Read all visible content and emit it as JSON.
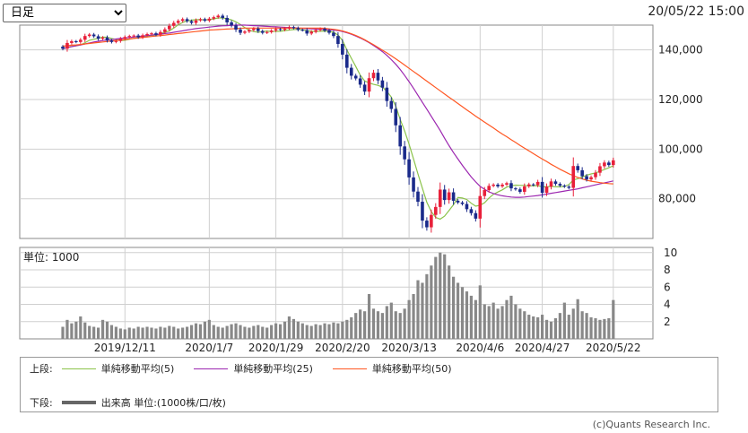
{
  "header": {
    "period_options": [
      "日足"
    ],
    "period_selected": "日足",
    "datetime": "20/05/22 15:00"
  },
  "chart_data": {
    "type": "candlestick",
    "price_axis": {
      "ticks": [
        80000,
        100000,
        120000,
        140000
      ],
      "tick_labels": [
        "80,000",
        "100,000",
        "120,000",
        "140,000"
      ],
      "range": [
        64000,
        150000
      ]
    },
    "volume_axis": {
      "label": "単位: 1000",
      "ticks": [
        2,
        4,
        6,
        8,
        10
      ],
      "tick_labels": [
        "2",
        "4",
        "6",
        "8",
        "10"
      ],
      "range": [
        0,
        10.6
      ]
    },
    "x_axis": {
      "date_labels": [
        "2019/12/11",
        "2020/1/7",
        "2020/1/29",
        "2020/2/20",
        "2020/3/13",
        "2020/4/6",
        "2020/4/27",
        "2020/5/22"
      ],
      "label_index": [
        14,
        33,
        48,
        63,
        78,
        94,
        108,
        124
      ]
    },
    "grid": true,
    "close": [
      140500,
      142800,
      143500,
      143200,
      144100,
      145600,
      146200,
      145500,
      144500,
      145000,
      143800,
      143200,
      143600,
      144500,
      145200,
      145600,
      145800,
      145100,
      145900,
      146400,
      146700,
      146100,
      147200,
      148300,
      149700,
      150900,
      151700,
      152400,
      151600,
      150900,
      151900,
      152400,
      151800,
      152600,
      153200,
      153800,
      152900,
      151100,
      149900,
      148200,
      146900,
      147400,
      148000,
      148600,
      147600,
      146900,
      147200,
      147800,
      148400,
      148100,
      148600,
      149200,
      148800,
      148100,
      147900,
      146600,
      147300,
      148000,
      148500,
      147800,
      146900,
      145600,
      142400,
      138100,
      132800,
      129600,
      128500,
      126000,
      123200,
      128600,
      130800,
      127700,
      124800,
      119400,
      116200,
      109600,
      101100,
      95900,
      88600,
      82900,
      78800,
      71200,
      68500,
      73500,
      76700,
      83700,
      79500,
      82600,
      79200,
      78500,
      77900,
      75800,
      74200,
      72000,
      81100,
      83500,
      85200,
      85700,
      85000,
      85700,
      86300,
      84200,
      83800,
      82800,
      85000,
      85800,
      85500,
      86800,
      82400,
      84900,
      87000,
      86000,
      85300,
      84900,
      84400,
      93200,
      91500,
      89100,
      87800,
      88700,
      90500,
      93100,
      94600,
      93600,
      95500
    ],
    "series": [
      {
        "name": "単純移動平均(5)",
        "color": "#8bc34a",
        "values": [
          140500,
          140950,
          141400,
          141600,
          142000,
          142900,
          143900,
          144300,
          144700,
          145200,
          145100,
          144600,
          144200,
          143800,
          143900,
          144300,
          144700,
          144900,
          145300,
          145600,
          145800,
          146000,
          146500,
          147100,
          147700,
          148800,
          150100,
          151100,
          151700,
          152000,
          152200,
          152200,
          152100,
          152200,
          152500,
          152900,
          152900,
          152600,
          152100,
          151300,
          150300,
          149000,
          147900,
          147400,
          147100,
          147400,
          147600,
          147400,
          147400,
          147500,
          147800,
          148000,
          148200,
          148300,
          148100,
          147800,
          147500,
          147400,
          147500,
          147600,
          147500,
          147100,
          146000,
          143800,
          140000,
          136600,
          133300,
          129800,
          127500,
          126700,
          126100,
          125700,
          125000,
          123300,
          121000,
          117300,
          112000,
          107300,
          102000,
          96000,
          90000,
          84300,
          78600,
          74800,
          72500,
          71800,
          73000,
          75300,
          77600,
          80500,
          80300,
          79700,
          78200,
          77000,
          77400,
          78400,
          80300,
          81800,
          82700,
          83600,
          84700,
          85200,
          85500,
          85400,
          85400,
          85200,
          85200,
          85300,
          84800,
          84800,
          85000,
          84800,
          84800,
          85000,
          85700,
          87600,
          88100,
          88800,
          89500,
          90000,
          90400,
          91100,
          91800,
          92500,
          93300
        ]
      },
      {
        "name": "単純移動平均(25)",
        "color": "#9c27b0",
        "values": [
          140500,
          140900,
          141300,
          141700,
          142000,
          142400,
          142800,
          143200,
          143500,
          143800,
          144000,
          144200,
          144400,
          144600,
          144800,
          145000,
          145200,
          145400,
          145600,
          145800,
          146000,
          146200,
          146400,
          146600,
          146800,
          147100,
          147400,
          147700,
          148000,
          148300,
          148600,
          148800,
          149000,
          149200,
          149400,
          149600,
          149700,
          149800,
          149900,
          150000,
          150000,
          150000,
          149900,
          149800,
          149700,
          149600,
          149500,
          149400,
          149300,
          149200,
          149100,
          149000,
          148900,
          148800,
          148700,
          148600,
          148500,
          148400,
          148300,
          148200,
          148100,
          148000,
          147800,
          147400,
          146900,
          146300,
          145600,
          144800,
          143900,
          142900,
          141800,
          140600,
          139300,
          137800,
          136100,
          134200,
          132100,
          129700,
          127200,
          124500,
          121700,
          118900,
          116100,
          113200,
          110400,
          107500,
          104400,
          101400,
          98600,
          96000,
          93500,
          91100,
          88800,
          86800,
          85000,
          83800,
          82800,
          82100,
          81600,
          81200,
          80900,
          80700,
          80600,
          80600,
          80700,
          80900,
          81100,
          81300,
          81600,
          81900,
          82200,
          82500,
          82800,
          83100,
          83400,
          83700,
          84000,
          84400,
          84800,
          85200,
          85600,
          86000,
          86400,
          86800,
          87200
        ]
      },
      {
        "name": "単純移動平均(50)",
        "color": "#ff5722",
        "values": [
          141500,
          141700,
          141900,
          142000,
          142200,
          142400,
          142600,
          142800,
          143000,
          143200,
          143400,
          143600,
          143800,
          144000,
          144200,
          144400,
          144600,
          144800,
          145000,
          145200,
          145400,
          145600,
          145800,
          146000,
          146200,
          146400,
          146600,
          146800,
          147000,
          147200,
          147400,
          147600,
          147800,
          148000,
          148100,
          148200,
          148300,
          148400,
          148500,
          148600,
          148700,
          148800,
          148800,
          148800,
          148800,
          148800,
          148800,
          148800,
          148800,
          148800,
          148800,
          148800,
          148800,
          148800,
          148800,
          148800,
          148800,
          148800,
          148800,
          148700,
          148500,
          148300,
          148000,
          147600,
          147100,
          146500,
          145800,
          145000,
          144100,
          143100,
          142100,
          141000,
          139900,
          138800,
          137600,
          136400,
          135200,
          133900,
          132600,
          131300,
          130000,
          128700,
          127400,
          126100,
          124800,
          123500,
          122200,
          120900,
          119700,
          118400,
          117100,
          115800,
          114600,
          113300,
          112100,
          110900,
          109700,
          108500,
          107300,
          106100,
          105000,
          103800,
          102700,
          101500,
          100400,
          99300,
          98200,
          97100,
          96000,
          95000,
          93900,
          92900,
          91900,
          91000,
          90100,
          89300,
          88600,
          88000,
          87500,
          87100,
          86800,
          86500,
          86300,
          86100,
          86000
        ]
      }
    ],
    "volume": {
      "name": "出来高",
      "values": [
        1.4,
        2.2,
        1.8,
        2.0,
        2.6,
        1.9,
        1.5,
        1.4,
        1.3,
        2.2,
        2.0,
        1.6,
        1.4,
        1.2,
        1.1,
        1.3,
        1.2,
        1.4,
        1.3,
        1.4,
        1.3,
        1.2,
        1.4,
        1.3,
        1.5,
        1.4,
        1.2,
        1.3,
        1.4,
        1.6,
        1.8,
        1.7,
        2.0,
        2.2,
        1.6,
        1.4,
        1.3,
        1.5,
        1.7,
        1.8,
        1.6,
        1.4,
        1.3,
        1.5,
        1.6,
        1.4,
        1.3,
        1.6,
        1.8,
        1.7,
        2.0,
        2.6,
        2.3,
        2.0,
        1.8,
        1.6,
        1.5,
        1.7,
        1.6,
        1.8,
        1.7,
        1.9,
        1.8,
        2.0,
        2.2,
        2.5,
        3.0,
        3.4,
        3.2,
        5.2,
        3.5,
        3.2,
        3.0,
        3.8,
        4.2,
        3.2,
        3.0,
        3.5,
        4.5,
        5.2,
        6.8,
        6.5,
        7.5,
        8.5,
        9.5,
        10.0,
        9.8,
        8.5,
        7.2,
        6.5,
        6.0,
        5.5,
        5.0,
        4.5,
        6.2,
        4.0,
        3.8,
        4.2,
        3.5,
        3.8,
        4.5,
        5.0,
        4.0,
        3.5,
        3.2,
        2.8,
        2.6,
        2.5,
        2.8,
        2.2,
        2.0,
        2.4,
        3.0,
        4.2,
        2.8,
        3.5,
        4.6,
        3.2,
        3.0,
        2.5,
        2.4,
        2.2,
        2.3,
        2.4,
        4.5
      ]
    }
  },
  "legend": {
    "upper_label": "上段:",
    "upper_items": [
      {
        "label": "単純移動平均(5)",
        "color": "#8bc34a"
      },
      {
        "label": "単純移動平均(25)",
        "color": "#9c27b0"
      },
      {
        "label": "単純移動平均(50)",
        "color": "#ff5722"
      }
    ],
    "lower_label": "下段:",
    "lower_item": "出来高 単位:(1000株/口/枚)"
  },
  "credit": "(c)Quants Research Inc."
}
